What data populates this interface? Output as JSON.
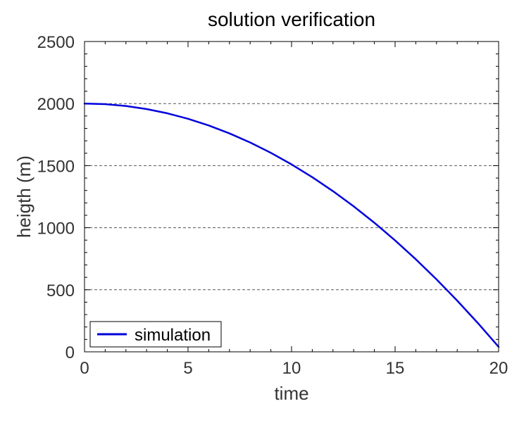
{
  "chart_data": {
    "type": "line",
    "title": "solution verification",
    "xlabel": "time",
    "ylabel": "heigth (m)",
    "xlim": [
      0,
      20
    ],
    "ylim": [
      0,
      2500
    ],
    "xticks": [
      0,
      5,
      10,
      15,
      20
    ],
    "yticks": [
      0,
      500,
      1000,
      1500,
      2000,
      2500
    ],
    "xtick_labels": [
      "0",
      "5",
      "10",
      "15",
      "20"
    ],
    "ytick_labels": [
      "0",
      "500",
      "1000",
      "1500",
      "2000",
      "2500"
    ],
    "grid": "horizontal dashed",
    "legend_position": "bottom-left",
    "series": [
      {
        "name": "simulation",
        "color": "#0000dd",
        "x": [
          0,
          1,
          2,
          3,
          4,
          5,
          6,
          7,
          8,
          9,
          10,
          11,
          12,
          13,
          14,
          15,
          16,
          17,
          18,
          19,
          20
        ],
        "y": [
          2000,
          1995.1,
          1980.4,
          1955.9,
          1921.6,
          1877.5,
          1823.6,
          1759.9,
          1686.4,
          1603.1,
          1510,
          1407.1,
          1294.4,
          1171.9,
          1039.6,
          897.5,
          745.6,
          583.9,
          412.4,
          231.1,
          40
        ]
      }
    ]
  }
}
